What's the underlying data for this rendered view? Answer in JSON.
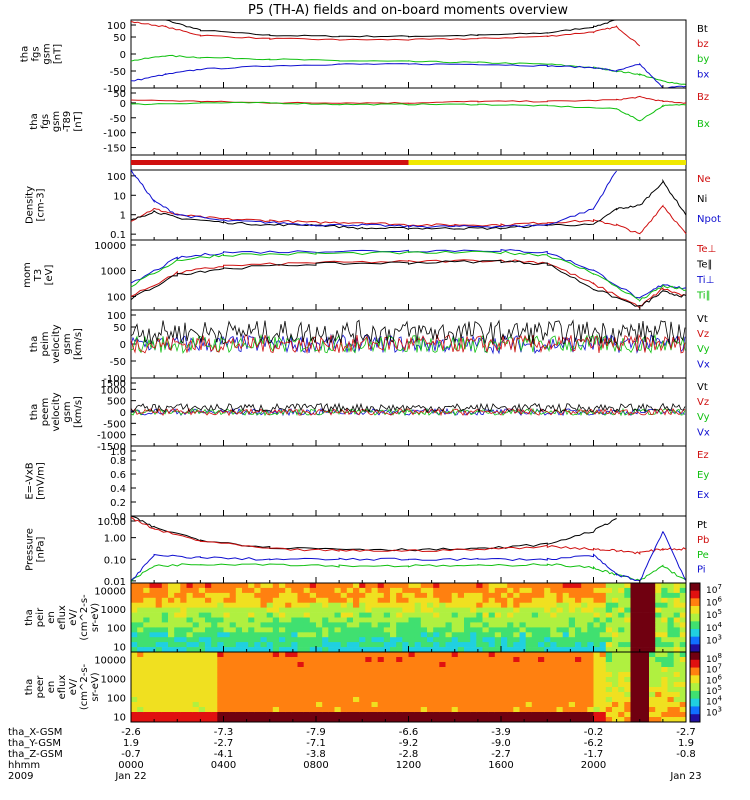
{
  "title": "P5 (TH-A) fields and on-board moments overview",
  "colors": {
    "black": "#000000",
    "red": "#d01010",
    "green": "#10c010",
    "blue": "#1010d0",
    "yellow": "#f0e800"
  },
  "chart_data": [
    {
      "type": "line",
      "panel": "fgs",
      "ylabel": [
        "tha",
        "fgs",
        "gsm",
        "[nT]"
      ],
      "yticks": [
        "100",
        "50",
        "0",
        "-50",
        "-100"
      ],
      "ylim": [
        -100,
        100
      ],
      "legend": [
        {
          "label": "Bt",
          "color": "black"
        },
        {
          "label": "bz",
          "color": "red"
        },
        {
          "label": "by",
          "color": "green"
        },
        {
          "label": "bx",
          "color": "blue"
        }
      ],
      "x_hours": [
        0,
        1.5,
        3,
        6,
        9,
        12,
        15,
        18,
        20,
        21,
        22,
        23,
        24
      ],
      "series": [
        {
          "name": "Bt",
          "values": [
            120,
            100,
            70,
            55,
            52,
            52,
            55,
            62,
            80,
            100,
            110,
            null,
            null
          ]
        },
        {
          "name": "bz",
          "values": [
            95,
            80,
            55,
            45,
            42,
            42,
            45,
            52,
            65,
            80,
            25,
            null,
            null
          ]
        },
        {
          "name": "by",
          "values": [
            -20,
            -5,
            -10,
            -15,
            -20,
            -22,
            -25,
            -30,
            -40,
            -50,
            -60,
            -80,
            -90
          ]
        },
        {
          "name": "bx",
          "values": [
            -80,
            -60,
            -45,
            -35,
            -30,
            -30,
            -30,
            -35,
            -40,
            -50,
            -30,
            -100,
            -95
          ]
        }
      ]
    },
    {
      "type": "line",
      "panel": "fgs_t89",
      "ylabel": [
        "tha",
        "fgs",
        "gsm",
        "-T89",
        "[nT]"
      ],
      "yticks": [
        "50",
        "0",
        "-50",
        "-100",
        "-150"
      ],
      "ylim": [
        -175,
        50
      ],
      "legend": [
        {
          "label": "Bz",
          "color": "red"
        },
        {
          "label": "Bx",
          "color": "green"
        }
      ],
      "x_hours": [
        0,
        3,
        6,
        9,
        12,
        15,
        18,
        21,
        22,
        23,
        24
      ],
      "series": [
        {
          "name": "Bz",
          "values": [
            10,
            5,
            0,
            0,
            0,
            5,
            5,
            10,
            20,
            5,
            0
          ]
        },
        {
          "name": "Bx",
          "values": [
            -5,
            0,
            0,
            -5,
            -5,
            -5,
            -10,
            -20,
            -60,
            -10,
            -5
          ]
        }
      ]
    },
    {
      "type": "bar",
      "panel": "mode_bar",
      "segments": [
        {
          "from_hour": 0,
          "to_hour": 12,
          "color": "red"
        },
        {
          "from_hour": 12,
          "to_hour": 24,
          "color": "yellow"
        }
      ]
    },
    {
      "type": "line",
      "panel": "density",
      "scale": "log",
      "ylabel": [
        "Density",
        "[cm-3]"
      ],
      "yticks": [
        "100",
        "10",
        "1",
        "0.1"
      ],
      "ylim": [
        0.05,
        200
      ],
      "legend": [
        {
          "label": "Ne",
          "color": "red"
        },
        {
          "label": "Ni",
          "color": "black"
        },
        {
          "label": "Npot",
          "color": "blue"
        }
      ],
      "x_hours": [
        0,
        1,
        2,
        4,
        6,
        8,
        10,
        12,
        14,
        16,
        18,
        20,
        21,
        22,
        23,
        24
      ],
      "series": [
        {
          "name": "Ne",
          "values": [
            0.5,
            2,
            1,
            0.6,
            0.5,
            0.4,
            0.4,
            0.3,
            0.3,
            0.3,
            0.4,
            0.5,
            0.3,
            0.1,
            3,
            0.1
          ]
        },
        {
          "name": "Ni",
          "values": [
            0.5,
            1.5,
            0.7,
            0.4,
            0.3,
            0.3,
            0.2,
            0.2,
            0.2,
            0.2,
            0.3,
            0.3,
            2,
            3,
            50,
            1
          ]
        },
        {
          "name": "Npot",
          "values": [
            200,
            5,
            1,
            0.5,
            0.4,
            0.3,
            0.3,
            0.25,
            0.25,
            0.25,
            0.3,
            2,
            200,
            null,
            null,
            null
          ]
        }
      ]
    },
    {
      "type": "line",
      "panel": "temperature",
      "scale": "log",
      "ylabel": [
        "mom",
        "T3",
        "[eV]"
      ],
      "yticks": [
        "10000",
        "1000",
        "100"
      ],
      "ylim": [
        30,
        15000
      ],
      "legend": [
        {
          "label": "Te⊥",
          "color": "red"
        },
        {
          "label": "Te∥",
          "color": "black"
        },
        {
          "label": "Ti⊥",
          "color": "blue"
        },
        {
          "label": "Ti∥",
          "color": "green"
        }
      ],
      "x_hours": [
        0,
        2,
        4,
        8,
        12,
        16,
        18,
        20,
        22,
        23,
        24
      ],
      "series": [
        {
          "name": "Te⊥",
          "values": [
            100,
            800,
            1500,
            2000,
            2200,
            2500,
            2000,
            300,
            40,
            200,
            100
          ]
        },
        {
          "name": "Te∥",
          "values": [
            80,
            700,
            1200,
            1800,
            2000,
            2300,
            1800,
            200,
            40,
            150,
            100
          ]
        },
        {
          "name": "Ti⊥",
          "values": [
            300,
            3000,
            5000,
            5500,
            5800,
            6000,
            5000,
            1000,
            80,
            300,
            200
          ]
        },
        {
          "name": "Ti∥",
          "values": [
            250,
            2500,
            4000,
            4500,
            4800,
            5000,
            4000,
            800,
            70,
            250,
            180
          ]
        }
      ]
    },
    {
      "type": "line",
      "panel": "peim_velocity",
      "ylabel": [
        "tha",
        "peim",
        "velocity",
        "gsm",
        "[km/s]"
      ],
      "yticks": [
        "100",
        "50",
        "0",
        "-50",
        "-100"
      ],
      "ylim": [
        -100,
        100
      ],
      "legend": [
        {
          "label": "Vt",
          "color": "black"
        },
        {
          "label": "Vz",
          "color": "red"
        },
        {
          "label": "Vy",
          "color": "green"
        },
        {
          "label": "Vx",
          "color": "blue"
        }
      ]
    },
    {
      "type": "line",
      "panel": "peem_velocity",
      "ylabel": [
        "tha",
        "peem",
        "velocity",
        "gsm",
        "[km/s]"
      ],
      "yticks": [
        "1500",
        "1000",
        "500",
        "0",
        "-500",
        "-1000",
        "-1500"
      ],
      "ylim": [
        -1500,
        1500
      ],
      "legend": [
        {
          "label": "Vt",
          "color": "black"
        },
        {
          "label": "Vz",
          "color": "red"
        },
        {
          "label": "Vy",
          "color": "green"
        },
        {
          "label": "Vx",
          "color": "blue"
        }
      ]
    },
    {
      "type": "line",
      "panel": "efield",
      "ylabel": [
        "E=-VxB",
        "[mV/m]"
      ],
      "yticks": [
        "1.0",
        "0.8",
        "0.6",
        "0.4",
        "0.2",
        "0.0"
      ],
      "ylim": [
        0,
        1
      ],
      "legend": [
        {
          "label": "Ez",
          "color": "red"
        },
        {
          "label": "Ey",
          "color": "green"
        },
        {
          "label": "Ex",
          "color": "blue"
        }
      ]
    },
    {
      "type": "line",
      "panel": "pressure",
      "scale": "log",
      "ylabel": [
        "Pressure",
        "[nPa]"
      ],
      "yticks": [
        "10.00",
        "1.00",
        "0.10",
        "0.01"
      ],
      "ylim": [
        0.008,
        10
      ],
      "legend": [
        {
          "label": "Pt",
          "color": "black"
        },
        {
          "label": "Pb",
          "color": "red"
        },
        {
          "label": "Pe",
          "color": "green"
        },
        {
          "label": "Pi",
          "color": "blue"
        }
      ],
      "x_hours": [
        0,
        1,
        3,
        6,
        9,
        12,
        15,
        18,
        20,
        21,
        22,
        23,
        24
      ],
      "series": [
        {
          "name": "Pt",
          "values": [
            10,
            3,
            0.8,
            0.35,
            0.3,
            0.28,
            0.3,
            0.5,
            2,
            8,
            null,
            null,
            null
          ]
        },
        {
          "name": "Pb",
          "values": [
            8,
            2.5,
            0.7,
            0.3,
            0.25,
            0.25,
            0.28,
            0.4,
            0.3,
            0.25,
            0.2,
            0.3,
            0.3
          ]
        },
        {
          "name": "Pe",
          "values": [
            0.01,
            0.05,
            0.06,
            0.06,
            0.05,
            0.05,
            0.05,
            0.06,
            0.04,
            0.02,
            0.01,
            0.05,
            0.01
          ]
        },
        {
          "name": "Pi",
          "values": [
            0.01,
            0.15,
            0.12,
            0.1,
            0.1,
            0.1,
            0.1,
            0.1,
            0.15,
            0.02,
            0.01,
            2,
            0.01
          ]
        }
      ]
    },
    {
      "type": "heatmap",
      "panel": "peir_spectrogram",
      "scale": "log",
      "ylabel": [
        "tha",
        "peir",
        "en",
        "eflux",
        "eV/",
        "(cm^2-s-",
        "sr-eV)"
      ],
      "yticks": [
        "10000",
        "1000",
        "100",
        "10"
      ],
      "ylim": [
        5,
        25000
      ],
      "colorbar_ticks": [
        "10^7",
        "10^6",
        "10^5",
        "10^4",
        "10^3"
      ]
    },
    {
      "type": "heatmap",
      "panel": "peer_spectrogram",
      "scale": "log",
      "ylabel": [
        "tha",
        "peer",
        "en",
        "eflux",
        "eV/",
        "(cm^2-s-",
        "sr-eV)"
      ],
      "yticks": [
        "10000",
        "1000",
        "100",
        "10"
      ],
      "ylim": [
        5,
        25000
      ],
      "colorbar_ticks": [
        "10^8",
        "10^7",
        "10^6",
        "10^5",
        "10^4",
        "10^3"
      ]
    }
  ],
  "x_axis": {
    "row_labels": [
      "tha_X-GSM",
      "tha_Y-GSM",
      "tha_Z-GSM",
      "hhmm",
      "2009"
    ],
    "columns": [
      {
        "x": "-2.6",
        "y": "1.9",
        "z": "-0.7",
        "hhmm": "0000",
        "date": "Jan 22"
      },
      {
        "x": "-7.3",
        "y": "-2.7",
        "z": "-4.1",
        "hhmm": "0400",
        "date": ""
      },
      {
        "x": "-7.9",
        "y": "-7.1",
        "z": "-3.8",
        "hhmm": "0800",
        "date": ""
      },
      {
        "x": "-6.6",
        "y": "-9.2",
        "z": "-2.8",
        "hhmm": "1200",
        "date": ""
      },
      {
        "x": "-3.9",
        "y": "-9.0",
        "z": "-2.7",
        "hhmm": "1600",
        "date": ""
      },
      {
        "x": "-0.2",
        "y": "-6.2",
        "z": "-1.7",
        "hhmm": "2000",
        "date": ""
      },
      {
        "x": "-2.7",
        "y": "1.9",
        "z": "-0.8",
        "hhmm": "",
        "date": "Jan 23"
      }
    ]
  }
}
